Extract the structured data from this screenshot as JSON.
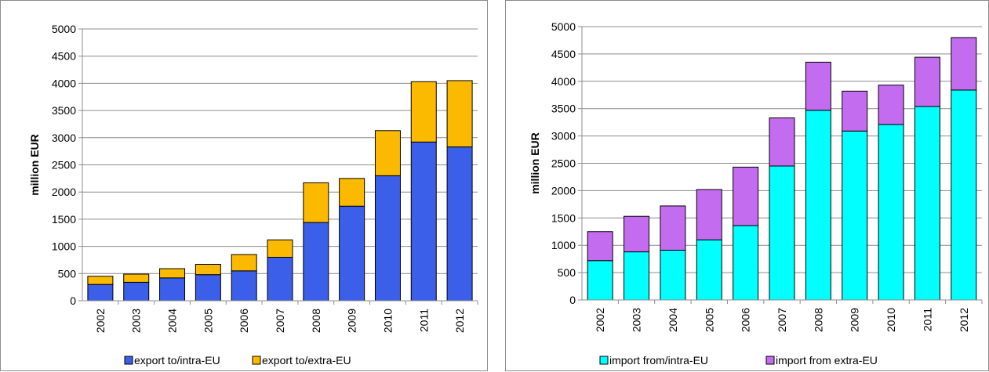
{
  "chart_data": [
    {
      "type": "bar",
      "stacked": true,
      "categories": [
        "2002",
        "2003",
        "2004",
        "2005",
        "2006",
        "2007",
        "2008",
        "2009",
        "2010",
        "2011",
        "2012"
      ],
      "series": [
        {
          "name": "export to/intra-EU",
          "color": "#3b5fe8",
          "values": [
            300,
            340,
            420,
            480,
            550,
            800,
            1440,
            1740,
            2300,
            2920,
            2830
          ]
        },
        {
          "name": "export to/extra-EU",
          "color": "#fbba00",
          "values": [
            150,
            150,
            170,
            190,
            300,
            320,
            730,
            510,
            830,
            1110,
            1220
          ]
        }
      ],
      "xlabel": "",
      "ylabel": "million EUR",
      "ylim": [
        0,
        5000
      ],
      "yticks": [
        0,
        500,
        1000,
        1500,
        2000,
        2500,
        3000,
        3500,
        4000,
        4500,
        5000
      ],
      "grid": true,
      "legend": "bottom"
    },
    {
      "type": "bar",
      "stacked": true,
      "categories": [
        "2002",
        "2003",
        "2004",
        "2005",
        "2006",
        "2007",
        "2008",
        "2009",
        "2010",
        "2011",
        "2012"
      ],
      "series": [
        {
          "name": "import from/intra-EU",
          "color": "#00ffff",
          "values": [
            720,
            880,
            910,
            1100,
            1360,
            2450,
            3470,
            3090,
            3210,
            3540,
            3840
          ]
        },
        {
          "name": "import from extra-EU",
          "color": "#c46cf0",
          "values": [
            530,
            650,
            810,
            920,
            1070,
            880,
            880,
            730,
            720,
            900,
            960
          ]
        }
      ],
      "xlabel": "",
      "ylabel": "million EUR",
      "ylim": [
        0,
        5000
      ],
      "yticks": [
        0,
        500,
        1000,
        1500,
        2000,
        2500,
        3000,
        3500,
        4000,
        4500,
        5000
      ],
      "grid": true,
      "legend": "bottom"
    }
  ]
}
